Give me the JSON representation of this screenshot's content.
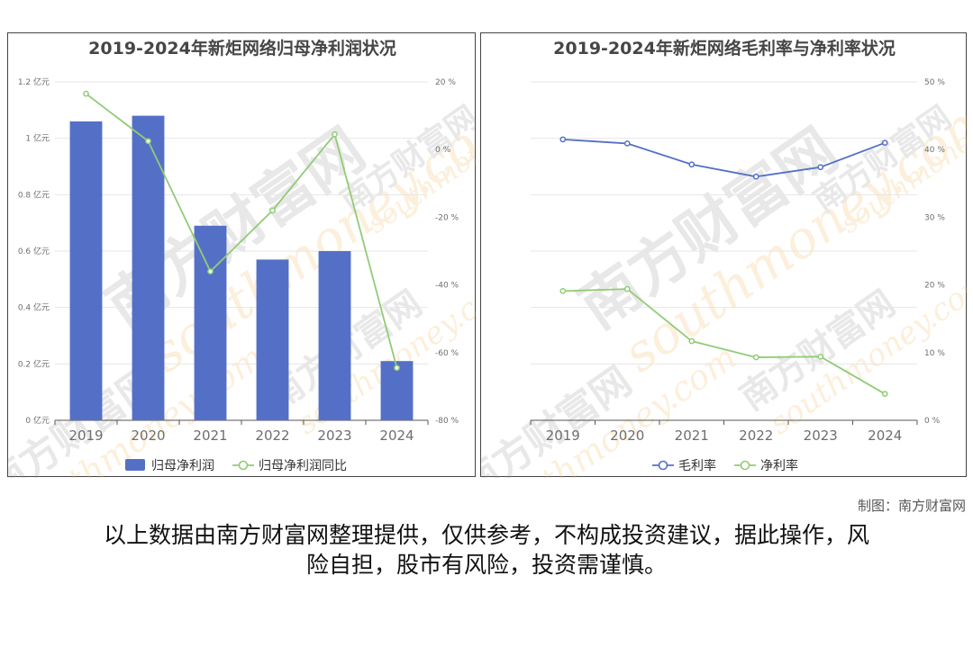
{
  "chart_data": [
    {
      "type": "bar",
      "title": "2019-2024年新炬网络归母净利润状况",
      "categories": [
        "2019",
        "2020",
        "2021",
        "2022",
        "2023",
        "2024"
      ],
      "series": [
        {
          "name": "归母净利润",
          "type": "bar",
          "axis": "left",
          "values": [
            1.06,
            1.08,
            0.69,
            0.57,
            0.6,
            0.21
          ],
          "color": "#5470c6"
        },
        {
          "name": "归母净利润同比",
          "type": "line",
          "axis": "right",
          "values": [
            16.5,
            2.5,
            -36.0,
            -18.0,
            4.5,
            -64.5
          ],
          "color": "#91cc75"
        }
      ],
      "y_left": {
        "min": 0,
        "max": 1.2,
        "ticks": [
          "0 亿元",
          "0.2 亿元",
          "0.4 亿元",
          "0.6 亿元",
          "0.8 亿元",
          "1 亿元",
          "1.2 亿元"
        ]
      },
      "y_right": {
        "min": -80,
        "max": 20,
        "ticks": [
          "-80 %",
          "-60 %",
          "-40 %",
          "-20 %",
          "0 %",
          "20 %"
        ]
      },
      "legend": "bottom-center",
      "grid": true
    },
    {
      "type": "line",
      "title": "2019-2024年新炬网络毛利率与净利率状况",
      "categories": [
        "2019",
        "2020",
        "2021",
        "2022",
        "2023",
        "2024"
      ],
      "series": [
        {
          "name": "毛利率",
          "values": [
            41.5,
            40.9,
            37.8,
            36.0,
            37.4,
            41.0
          ],
          "color": "#5470c6"
        },
        {
          "name": "净利率",
          "values": [
            19.1,
            19.4,
            11.7,
            9.3,
            9.4,
            3.9
          ],
          "color": "#91cc75"
        }
      ],
      "y_right": {
        "min": 0,
        "max": 50,
        "ticks": [
          "0 %",
          "10 %",
          "20 %",
          "30 %",
          "40 %",
          "50 %"
        ]
      },
      "legend": "bottom-center",
      "grid": true
    }
  ],
  "watermark_text": [
    "南方财富网",
    "southmoney.com"
  ],
  "credit": "制图：南方财富网",
  "disclaimer_lines": [
    "以上数据由南方财富网整理提供，仅供参考，不构成投资建议，据此操作，风",
    "险自担，股市有风险，投资需谨慎。"
  ]
}
